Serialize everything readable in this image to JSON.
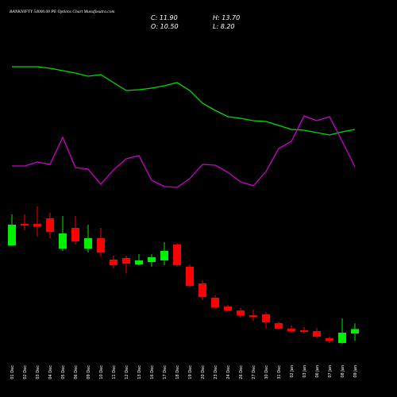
{
  "chart_data": {
    "type": "candlestick",
    "title": "BANKNIFTY 54000.00 PE Options Chart Munafasutra.com",
    "ohlc_labels": {
      "close": "C: 11.90",
      "high": "H: 13.70",
      "open": "O: 10.50",
      "low": "L: 8.20"
    },
    "categories": [
      "01 Dec",
      "02 Dec",
      "03 Dec",
      "04 Dec",
      "05 Dec",
      "06 Dec",
      "09 Dec",
      "10 Dec",
      "11 Dec",
      "12 Dec",
      "13 Dec",
      "16 Dec",
      "17 Dec",
      "18 Dec",
      "19 Dec",
      "20 Dec",
      "23 Dec",
      "24 Dec",
      "26 Dec",
      "27 Dec",
      "30 Dec",
      "31 Dec",
      "02 Jan",
      "03 Jan",
      "06 Jan",
      "07 Jan",
      "08 Jan",
      "09 Jan"
    ],
    "open": [
      38.25,
      45,
      45,
      46.75,
      37.25,
      43.75,
      37.25,
      40.5,
      33.75,
      34.25,
      32.25,
      33,
      33.5,
      38.5,
      31.5,
      26.25,
      21.75,
      19,
      17.75,
      16.25,
      16.5,
      13.75,
      12,
      11.5,
      11.25,
      9,
      7.5,
      10.5
    ],
    "high": [
      48,
      48,
      50.5,
      48.5,
      47.5,
      47.5,
      44.75,
      43.75,
      35,
      35,
      35.5,
      35.5,
      39.25,
      39,
      32.25,
      27.25,
      22.5,
      19.5,
      18.5,
      18,
      17.25,
      14.25,
      13,
      12.5,
      12.25,
      9.5,
      15.25,
      13.7
    ],
    "low": [
      38.25,
      43,
      41,
      40.5,
      36.5,
      38.5,
      36,
      34.75,
      31,
      29.5,
      32,
      31.5,
      32,
      31.5,
      25,
      21,
      18.25,
      17.5,
      15.5,
      14.5,
      12,
      11.75,
      10.75,
      10.5,
      9,
      7.5,
      7.25,
      8.2
    ],
    "close": [
      44.75,
      44.5,
      44.25,
      42.5,
      42,
      39.5,
      40.5,
      36,
      32,
      32.5,
      33.5,
      34.5,
      36.5,
      32,
      25.5,
      22,
      18.75,
      17.75,
      16.25,
      15.75,
      14,
      12,
      11.25,
      11,
      9.5,
      8.25,
      10.75,
      11.9
    ],
    "up_color": "#00ee00",
    "down_color": "#ff0000",
    "ylim": [
      5,
      50
    ],
    "lines": [
      {
        "color": "#00dd00",
        "axis": "y2",
        "values": [
          176,
          176,
          176,
          174,
          171,
          168,
          164,
          166,
          156,
          146,
          147,
          149,
          152,
          156,
          146,
          130,
          121,
          113,
          111,
          108,
          107,
          102,
          97,
          96,
          93,
          90,
          94,
          97
        ]
      },
      {
        "color": "#cc00cc",
        "axis": "y2",
        "values": [
          51,
          51,
          56,
          53,
          87,
          49,
          47,
          28,
          46,
          60,
          64,
          33,
          25,
          24,
          35,
          53,
          52,
          43,
          31,
          26,
          44,
          73,
          82,
          114,
          108,
          113,
          82,
          50
        ]
      }
    ],
    "y2lim": [
      0,
      200
    ]
  }
}
